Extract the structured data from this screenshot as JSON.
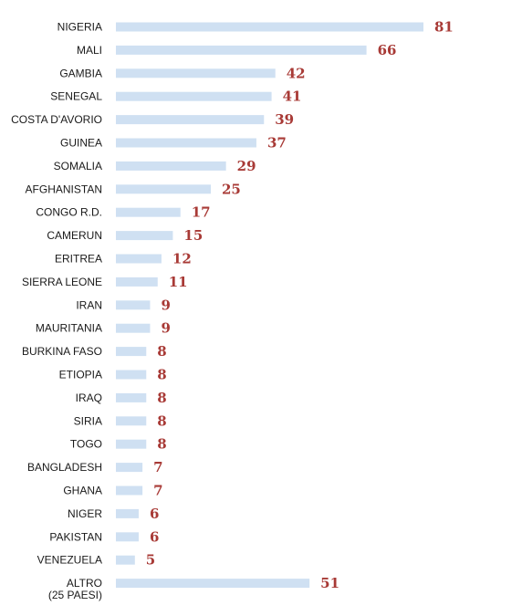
{
  "chart_data": {
    "type": "bar",
    "orientation": "horizontal",
    "categories": [
      "NIGERIA",
      "MALI",
      "GAMBIA",
      "SENEGAL",
      "COSTA D'AVORIO",
      "GUINEA",
      "SOMALIA",
      "AFGHANISTAN",
      "CONGO R.D.",
      "CAMERUN",
      "ERITREA",
      "SIERRA LEONE",
      "IRAN",
      "MAURITANIA",
      "BURKINA FASO",
      "ETIOPIA",
      "IRAQ",
      "SIRIA",
      "TOGO",
      "BANGLADESH",
      "GHANA",
      "NIGER",
      "PAKISTAN",
      "VENEZUELA",
      "ALTRO\n(25 PAESI)"
    ],
    "values": [
      81,
      66,
      42,
      41,
      39,
      37,
      29,
      25,
      17,
      15,
      12,
      11,
      9,
      9,
      8,
      8,
      8,
      8,
      8,
      7,
      7,
      6,
      6,
      5,
      51
    ],
    "title": "",
    "xlabel": "",
    "ylabel": "",
    "xlim": [
      0,
      81
    ],
    "grid": false,
    "legend": "none",
    "colors": {
      "bar": "#cfe0f2",
      "value_label": "#a83a36",
      "category_label": "#1a1a1a"
    }
  }
}
